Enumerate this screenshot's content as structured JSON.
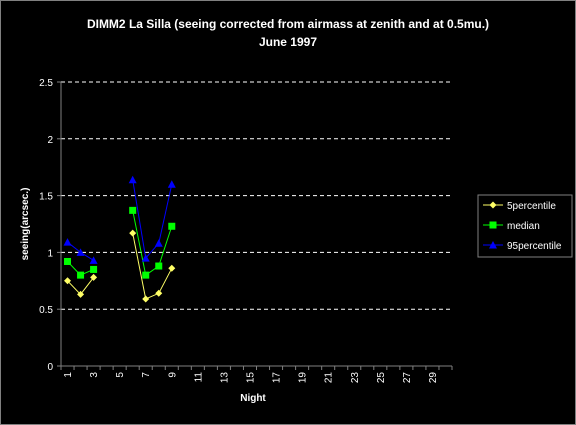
{
  "chart_data": {
    "type": "line",
    "title_line1": "DIMM2 La Silla (seeing corrected from airmass at zenith and at 0.5mu.)",
    "title_line2": "June 1997",
    "xlabel": "Night",
    "ylabel": "seeing(arcsec.)",
    "ylim": [
      0,
      2.5
    ],
    "yticks": [
      "0",
      "0.5",
      "1",
      "1.5",
      "2",
      "2.5"
    ],
    "xlim": [
      1,
      30
    ],
    "xticks": [
      "1",
      "3",
      "5",
      "7",
      "9",
      "11",
      "13",
      "15",
      "17",
      "19",
      "21",
      "23",
      "25",
      "27",
      "29"
    ],
    "grid": "horizontal dashed",
    "legend_position": "right",
    "series": [
      {
        "name": "5percentile",
        "color": "#ffff66",
        "marker": "diamond",
        "segments": [
          [
            [
              1,
              0.75
            ],
            [
              2,
              0.63
            ],
            [
              3,
              0.78
            ]
          ],
          [
            [
              6,
              1.17
            ],
            [
              7,
              0.59
            ],
            [
              8,
              0.64
            ],
            [
              9,
              0.86
            ]
          ]
        ]
      },
      {
        "name": "median",
        "color": "#00ff00",
        "marker": "square",
        "segments": [
          [
            [
              1,
              0.92
            ],
            [
              2,
              0.8
            ],
            [
              3,
              0.85
            ]
          ],
          [
            [
              6,
              1.37
            ],
            [
              7,
              0.8
            ],
            [
              8,
              0.88
            ],
            [
              9,
              1.23
            ]
          ]
        ]
      },
      {
        "name": "95percentile",
        "color": "#0000ff",
        "marker": "triangle",
        "segments": [
          [
            [
              1,
              1.09
            ],
            [
              2,
              1.0
            ],
            [
              3,
              0.93
            ]
          ],
          [
            [
              6,
              1.64
            ],
            [
              7,
              0.95
            ],
            [
              8,
              1.08
            ],
            [
              9,
              1.6
            ]
          ]
        ]
      }
    ]
  }
}
